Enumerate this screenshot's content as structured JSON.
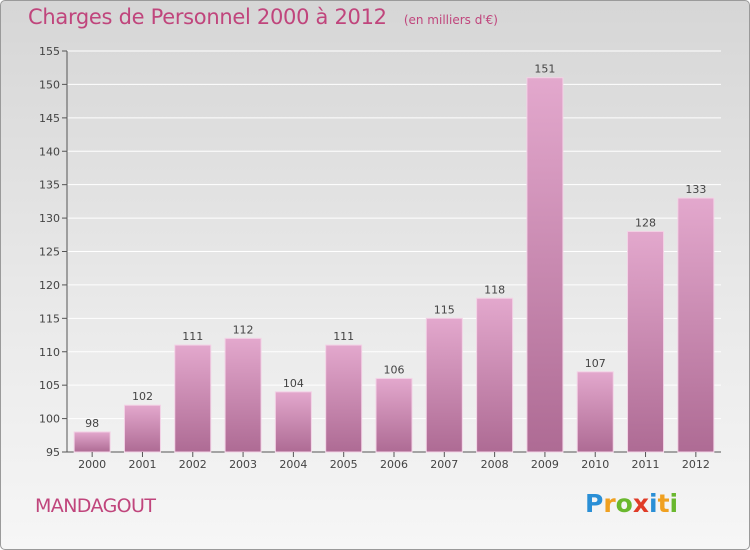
{
  "header": {
    "title": "Charges de Personnel 2000 à 2012",
    "subtitle": "(en milliers d'€)"
  },
  "footer": {
    "town": "MANDAGOUT",
    "logo_text": "Proxiti",
    "logo_letters": [
      {
        "ch": "P",
        "color": "#2a8fd6"
      },
      {
        "ch": "r",
        "color": "#f0a020"
      },
      {
        "ch": "o",
        "color": "#6ab82e"
      },
      {
        "ch": "x",
        "color": "#e03c28"
      },
      {
        "ch": "i",
        "color": "#2a8fd6"
      },
      {
        "ch": "t",
        "color": "#f0a020"
      },
      {
        "ch": "i",
        "color": "#6ab82e"
      }
    ]
  },
  "colors": {
    "accent": "#c0457c",
    "bar_top": "#e3a8cd",
    "bar_bottom": "#ae6b94",
    "axis": "#555555",
    "grid": "#ffffff"
  },
  "chart_data": {
    "type": "bar",
    "categories": [
      "2000",
      "2001",
      "2002",
      "2003",
      "2004",
      "2005",
      "2006",
      "2007",
      "2008",
      "2009",
      "2010",
      "2011",
      "2012"
    ],
    "values": [
      98,
      102,
      111,
      112,
      104,
      111,
      106,
      115,
      118,
      151,
      107,
      128,
      133
    ],
    "ylim": [
      95,
      155
    ],
    "yticks": [
      95,
      100,
      105,
      110,
      115,
      120,
      125,
      130,
      135,
      140,
      145,
      150,
      155
    ],
    "grid": true,
    "xlabel": "",
    "ylabel": ""
  }
}
